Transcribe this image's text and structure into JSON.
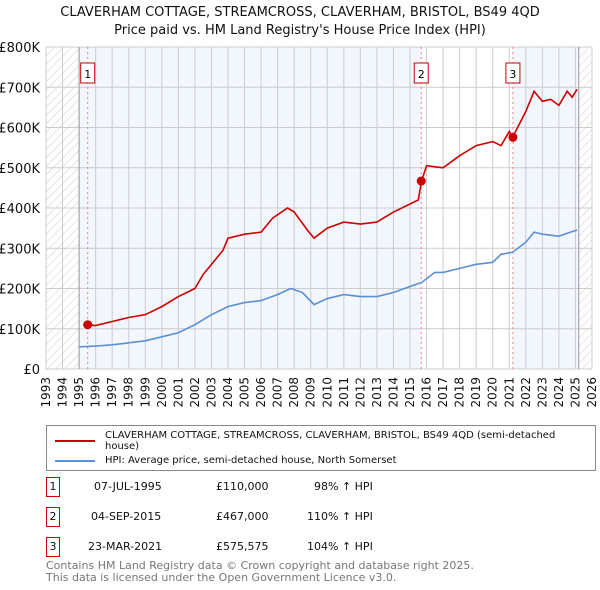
{
  "chart_data": {
    "type": "line",
    "title": "CLAVERHAM COTTAGE, STREAMCROSS, CLAVERHAM, BRISTOL, BS49 4QD",
    "subtitle": "Price paid vs. HM Land Registry's House Price Index (HPI)",
    "ylim": [
      0,
      800000
    ],
    "xlim": [
      1993,
      2026
    ],
    "y_ticks": [
      "£0",
      "£100K",
      "£200K",
      "£300K",
      "£400K",
      "£500K",
      "£600K",
      "£700K",
      "£800K"
    ],
    "x_ticks": [
      "1993",
      "1994",
      "1995",
      "1996",
      "1997",
      "1998",
      "1999",
      "2000",
      "2001",
      "2002",
      "2003",
      "2004",
      "2005",
      "2006",
      "2007",
      "2008",
      "2009",
      "2010",
      "2011",
      "2012",
      "2013",
      "2014",
      "2015",
      "2016",
      "2017",
      "2018",
      "2019",
      "2020",
      "2021",
      "2022",
      "2023",
      "2024",
      "2025",
      "2026"
    ],
    "series": [
      {
        "name": "CLAVERHAM COTTAGE, STREAMCROSS, CLAVERHAM, BRISTOL, BS49 4QD (semi-detached house)",
        "color": "#cc0000",
        "x": [
          1995.5,
          1996,
          1997,
          1998,
          1999,
          2000,
          2001,
          2002,
          2002.5,
          2003,
          2003.7,
          2004,
          2005,
          2006,
          2006.7,
          2007.6,
          2008,
          2008.8,
          2009.2,
          2010,
          2011,
          2012,
          2013,
          2014,
          2015,
          2015.5,
          2015.7,
          2016,
          2017,
          2018,
          2019,
          2020,
          2020.5,
          2021,
          2021.2,
          2022,
          2022.5,
          2023,
          2023.5,
          2024,
          2024.5,
          2024.8,
          2025.1
        ],
        "values": [
          110000,
          108000,
          118000,
          128000,
          135000,
          155000,
          180000,
          200000,
          235000,
          260000,
          295000,
          325000,
          335000,
          340000,
          375000,
          400000,
          390000,
          345000,
          325000,
          350000,
          365000,
          360000,
          365000,
          390000,
          410000,
          420000,
          467000,
          505000,
          500000,
          530000,
          555000,
          565000,
          555000,
          590000,
          575575,
          640000,
          690000,
          665000,
          670000,
          655000,
          690000,
          675000,
          695000
        ]
      },
      {
        "name": "HPI: Average price, semi-detached house, North Somerset",
        "color": "#5b8fd6",
        "x": [
          1995,
          1996,
          1997,
          1998,
          1999,
          2000,
          2001,
          2002,
          2003,
          2004,
          2005,
          2006,
          2007,
          2007.8,
          2008.5,
          2009.2,
          2010,
          2011,
          2012,
          2013,
          2014,
          2015,
          2015.7,
          2016.5,
          2017,
          2018,
          2019,
          2020,
          2020.5,
          2021.2,
          2022,
          2022.5,
          2023,
          2024,
          2024.7,
          2025.1
        ],
        "values": [
          55000,
          57000,
          60000,
          65000,
          70000,
          80000,
          90000,
          110000,
          135000,
          155000,
          165000,
          170000,
          185000,
          200000,
          190000,
          160000,
          175000,
          185000,
          180000,
          180000,
          190000,
          205000,
          215000,
          240000,
          240000,
          250000,
          260000,
          265000,
          285000,
          290000,
          315000,
          340000,
          335000,
          330000,
          340000,
          345000
        ]
      }
    ],
    "sales": [
      {
        "label": "1",
        "x": 1995.52,
        "value": 110000,
        "date": "07-JUL-1995",
        "price": "£110,000",
        "hpi": "98% ↑ HPI"
      },
      {
        "label": "2",
        "x": 2015.68,
        "value": 467000,
        "date": "04-SEP-2015",
        "price": "£467,000",
        "hpi": "110% ↑ HPI"
      },
      {
        "label": "3",
        "x": 2021.22,
        "value": 575575,
        "date": "23-MAR-2021",
        "price": "£575,575",
        "hpi": "104% ↑ HPI"
      }
    ],
    "legend": {
      "position": "below"
    }
  },
  "footer": {
    "line1": "Contains HM Land Registry data © Crown copyright and database right 2025.",
    "line2": "This data is licensed under the Open Government Licence v3.0."
  }
}
